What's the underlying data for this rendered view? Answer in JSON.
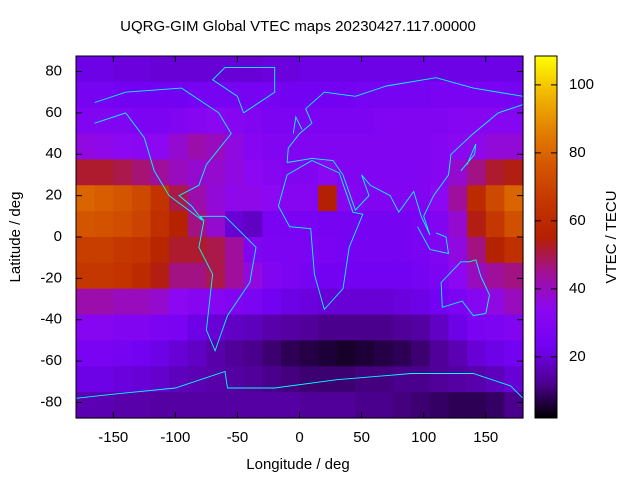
{
  "chart_data": {
    "type": "heatmap",
    "title": "UQRG-GIM Global VTEC maps 20230427.117.00000",
    "xlabel": "Longitude / deg",
    "ylabel": "Latitude / deg",
    "xlim": [
      -180,
      180
    ],
    "ylim": [
      -87.5,
      87.5
    ],
    "xticks": [
      -150,
      -100,
      -50,
      0,
      50,
      100,
      150
    ],
    "yticks": [
      -80,
      -60,
      -40,
      -20,
      0,
      20,
      40,
      60,
      80
    ],
    "x": [
      -172.5,
      -157.5,
      -142.5,
      -127.5,
      -112.5,
      -97.5,
      -82.5,
      -67.5,
      -52.5,
      -37.5,
      -22.5,
      -7.5,
      7.5,
      22.5,
      37.5,
      52.5,
      67.5,
      82.5,
      97.5,
      112.5,
      127.5,
      142.5,
      157.5,
      172.5
    ],
    "y": [
      81.25,
      68.75,
      56.25,
      43.75,
      31.25,
      18.75,
      6.25,
      -6.25,
      -18.75,
      -31.25,
      -43.75,
      -56.25,
      -68.75,
      -81.25
    ],
    "z": [
      [
        22,
        22,
        21,
        21,
        20,
        20,
        20,
        20,
        20,
        20,
        21,
        21,
        22,
        22,
        22,
        22,
        22,
        22,
        22,
        22,
        22,
        22,
        22,
        22
      ],
      [
        25,
        25,
        24,
        24,
        24,
        24,
        25,
        25,
        25,
        25,
        25,
        24,
        24,
        24,
        24,
        25,
        25,
        25,
        25,
        26,
        26,
        26,
        26,
        25
      ],
      [
        30,
        30,
        29,
        28,
        28,
        30,
        32,
        33,
        32,
        30,
        28,
        28,
        28,
        28,
        28,
        28,
        29,
        30,
        30,
        30,
        31,
        32,
        32,
        31
      ],
      [
        36,
        35,
        34,
        33,
        34,
        38,
        42,
        40,
        36,
        32,
        30,
        30,
        30,
        30,
        30,
        30,
        30,
        30,
        30,
        31,
        33,
        35,
        37,
        37
      ],
      [
        52,
        52,
        50,
        47,
        44,
        40,
        38,
        38,
        36,
        34,
        32,
        30,
        30,
        33,
        30,
        29,
        29,
        29,
        30,
        32,
        38,
        46,
        52,
        54
      ],
      [
        80,
        78,
        76,
        72,
        64,
        50,
        42,
        37,
        35,
        35,
        34,
        32,
        32,
        55,
        32,
        30,
        30,
        30,
        30,
        34,
        44,
        60,
        72,
        80
      ],
      [
        76,
        75,
        73,
        70,
        62,
        56,
        46,
        38,
        20,
        18,
        26,
        26,
        26,
        25,
        25,
        25,
        25,
        25,
        26,
        30,
        38,
        54,
        66,
        74
      ],
      [
        68,
        68,
        66,
        64,
        58,
        52,
        52,
        50,
        44,
        30,
        28,
        28,
        27,
        26,
        25,
        25,
        25,
        25,
        26,
        30,
        36,
        46,
        56,
        62
      ],
      [
        66,
        66,
        64,
        60,
        54,
        46,
        46,
        50,
        44,
        36,
        30,
        27,
        25,
        24,
        24,
        24,
        24,
        24,
        25,
        28,
        34,
        40,
        44,
        46
      ],
      [
        42,
        42,
        40,
        40,
        38,
        34,
        32,
        32,
        30,
        27,
        24,
        22,
        21,
        20,
        20,
        20,
        20,
        21,
        22,
        24,
        28,
        32,
        36,
        40
      ],
      [
        32,
        32,
        30,
        30,
        28,
        26,
        22,
        20,
        18,
        17,
        15,
        14,
        13,
        12,
        12,
        12,
        12,
        13,
        14,
        18,
        22,
        26,
        28,
        30
      ],
      [
        26,
        26,
        25,
        24,
        22,
        20,
        18,
        15,
        13,
        12,
        10,
        8,
        7,
        6,
        5,
        6,
        7,
        8,
        10,
        13,
        16,
        20,
        22,
        24
      ],
      [
        22,
        22,
        21,
        20,
        19,
        17,
        16,
        15,
        14,
        13,
        12,
        11,
        10,
        10,
        10,
        11,
        11,
        12,
        12,
        13,
        14,
        15,
        17,
        20
      ],
      [
        16,
        16,
        15,
        15,
        14,
        14,
        14,
        14,
        14,
        14,
        14,
        14,
        13,
        13,
        13,
        12,
        12,
        11,
        10,
        9,
        8,
        8,
        9,
        12
      ]
    ],
    "colorbar": {
      "label": "VTEC / TECU",
      "lim": [
        2,
        108.5
      ],
      "ticks": [
        20,
        40,
        60,
        80,
        100
      ]
    },
    "colormap": [
      "#000000",
      "#500096",
      "#7202f2",
      "#8c07f2",
      "#a11096",
      "#b42000",
      "#c53700",
      "#d55700",
      "#e48300",
      "#f2ba00",
      "#ffff00"
    ],
    "coastline_color": "#00ffff"
  }
}
